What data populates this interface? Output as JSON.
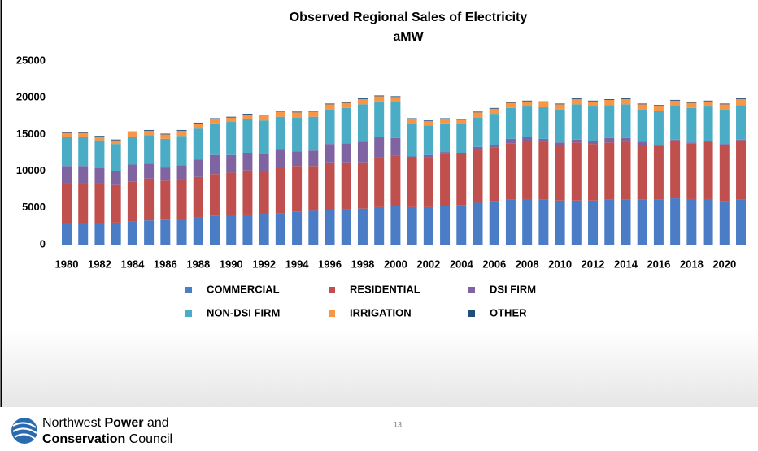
{
  "chart_data": {
    "type": "stacked-bar",
    "title": "Observed Regional Sales of Electricity",
    "subtitle": "aMW",
    "categories": [
      "1980",
      null,
      "1982",
      null,
      "1984",
      null,
      "1986",
      null,
      "1988",
      null,
      "1990",
      null,
      "1992",
      null,
      "1994",
      null,
      "1996",
      null,
      "1998",
      null,
      "2000",
      null,
      "2002",
      null,
      "2004",
      null,
      "2006",
      null,
      "2008",
      null,
      "2010",
      null,
      "2012",
      null,
      "2014",
      null,
      "2016",
      null,
      "2018",
      null,
      "2020",
      null
    ],
    "series": [
      {
        "name": "COMMERCIAL",
        "color": "#4a7dc6",
        "values": [
          2900,
          2900,
          2900,
          3000,
          3200,
          3300,
          3400,
          3500,
          3700,
          3900,
          4000,
          4100,
          4200,
          4300,
          4500,
          4600,
          4700,
          4800,
          4900,
          5100,
          5200,
          5100,
          5100,
          5300,
          5400,
          5700,
          5900,
          6100,
          6200,
          6100,
          6000,
          6000,
          6000,
          6100,
          6100,
          6100,
          6100,
          6300,
          6200,
          6200,
          5900,
          6100
        ]
      },
      {
        "name": "RESIDENTIAL",
        "color": "#c0504d",
        "values": [
          5400,
          5400,
          5500,
          5100,
          5400,
          5700,
          5300,
          5400,
          5500,
          5700,
          5800,
          6000,
          5700,
          6300,
          6200,
          6100,
          6500,
          6400,
          6300,
          6800,
          6900,
          6700,
          6800,
          7100,
          6900,
          7300,
          7300,
          7700,
          7900,
          7900,
          7500,
          7900,
          7700,
          7800,
          7900,
          7500,
          7300,
          7900,
          7600,
          7800,
          7700,
          8100
        ]
      },
      {
        "name": "DSI FIRM",
        "color": "#8064a2",
        "values": [
          2400,
          2400,
          2000,
          1900,
          2300,
          2000,
          1800,
          1900,
          2400,
          2600,
          2400,
          2400,
          2400,
          2400,
          2000,
          2100,
          2500,
          2600,
          2800,
          2800,
          2400,
          200,
          300,
          200,
          200,
          300,
          400,
          600,
          600,
          400,
          400,
          400,
          400,
          600,
          500,
          400,
          100,
          100,
          100,
          100,
          100,
          100
        ]
      },
      {
        "name": "NON-DSI FIRM",
        "color": "#4bacc6",
        "values": [
          3900,
          3900,
          3800,
          3700,
          3800,
          3900,
          3900,
          4000,
          4200,
          4300,
          4500,
          4600,
          4600,
          4400,
          4600,
          4600,
          4700,
          4800,
          5100,
          4800,
          4900,
          4400,
          4000,
          3900,
          3900,
          4000,
          4200,
          4200,
          4100,
          4300,
          4500,
          4800,
          4700,
          4500,
          4600,
          4400,
          4700,
          4600,
          4700,
          4700,
          4700,
          4700
        ]
      },
      {
        "name": "IRRIGATION",
        "color": "#f79646",
        "values": [
          600,
          600,
          500,
          500,
          600,
          600,
          600,
          700,
          700,
          600,
          600,
          600,
          700,
          700,
          700,
          700,
          700,
          700,
          700,
          700,
          700,
          700,
          600,
          600,
          600,
          700,
          700,
          700,
          700,
          700,
          700,
          700,
          700,
          700,
          700,
          700,
          700,
          700,
          700,
          700,
          700,
          800
        ]
      },
      {
        "name": "OTHER",
        "color": "#1f4e79",
        "values": [
          100,
          100,
          100,
          100,
          100,
          100,
          100,
          100,
          100,
          100,
          100,
          100,
          100,
          100,
          100,
          100,
          100,
          100,
          100,
          100,
          100,
          100,
          100,
          100,
          100,
          100,
          100,
          100,
          100,
          100,
          100,
          100,
          100,
          100,
          100,
          100,
          100,
          100,
          100,
          100,
          100,
          100
        ]
      }
    ],
    "ylim": [
      0,
      25000
    ],
    "yticks": [
      0,
      5000,
      10000,
      15000,
      20000,
      25000
    ],
    "grid": false,
    "legend": "bottom"
  },
  "footer": {
    "org": [
      "Northwest ",
      "Power",
      " and",
      "Conservation",
      " Council"
    ],
    "page": "13"
  }
}
